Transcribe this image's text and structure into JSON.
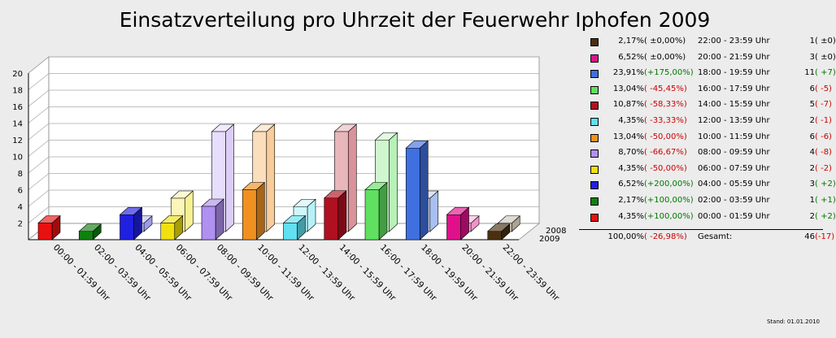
{
  "chart_data": {
    "type": "bar",
    "title": "Einsatzverteilung pro Uhrzeit der Feuerwehr Iphofen 2009",
    "categories": [
      "00:00 - 01:59 Uhr",
      "02:00 - 03:59 Uhr",
      "04:00 - 05:59 Uhr",
      "06:00 - 07:59 Uhr",
      "08:00 - 09:59 Uhr",
      "10:00 - 11:59 Uhr",
      "12:00 - 13:59 Uhr",
      "14:00 - 15:59 Uhr",
      "16:00 - 17:59 Uhr",
      "18:00 - 19:59 Uhr",
      "20:00 - 21:59 Uhr",
      "22:00 - 23:59 Uhr"
    ],
    "series": [
      {
        "name": "2009",
        "values": [
          2,
          1,
          3,
          2,
          4,
          6,
          2,
          5,
          6,
          11,
          3,
          1
        ]
      },
      {
        "name": "2008",
        "values": [
          0,
          0,
          1,
          4,
          12,
          12,
          3,
          12,
          11,
          4,
          1,
          1
        ]
      }
    ],
    "colors": [
      "#e81010",
      "#108010",
      "#2020e0",
      "#f0e010",
      "#b090f0",
      "#f09020",
      "#60e0f0",
      "#b01020",
      "#60e060",
      "#4070e0",
      "#e0108a",
      "#4a3010"
    ],
    "yticks": [
      2,
      4,
      6,
      8,
      10,
      12,
      14,
      16,
      18,
      20
    ],
    "ylim": [
      0,
      20
    ],
    "grid": true
  },
  "legend": {
    "rows": [
      {
        "pct": "2,17%",
        "chg": "( ±0,00%)",
        "chg_color": "none",
        "time": "22:00 - 23:59 Uhr",
        "count": "1",
        "cchg": "( ±0)",
        "cchg_color": "none",
        "color": "#4a3010"
      },
      {
        "pct": "6,52%",
        "chg": "( ±0,00%)",
        "chg_color": "none",
        "time": "20:00 - 21:59 Uhr",
        "count": "3",
        "cchg": "( ±0)",
        "cchg_color": "none",
        "color": "#e0108a"
      },
      {
        "pct": "23,91%",
        "chg": "(+175,00%)",
        "chg_color": "green",
        "time": "18:00 - 19:59 Uhr",
        "count": "11",
        "cchg": "( +7)",
        "cchg_color": "green",
        "color": "#4070e0"
      },
      {
        "pct": "13,04%",
        "chg": "( -45,45%)",
        "chg_color": "red",
        "time": "16:00 - 17:59 Uhr",
        "count": "6",
        "cchg": "( -5)",
        "cchg_color": "red",
        "color": "#60e060"
      },
      {
        "pct": "10,87%",
        "chg": "( -58,33%)",
        "chg_color": "red",
        "time": "14:00 - 15:59 Uhr",
        "count": "5",
        "cchg": "( -7)",
        "cchg_color": "red",
        "color": "#b01020"
      },
      {
        "pct": "4,35%",
        "chg": "( -33,33%)",
        "chg_color": "red",
        "time": "12:00 - 13:59 Uhr",
        "count": "2",
        "cchg": "( -1)",
        "cchg_color": "red",
        "color": "#60e0f0"
      },
      {
        "pct": "13,04%",
        "chg": "( -50,00%)",
        "chg_color": "red",
        "time": "10:00 - 11:59 Uhr",
        "count": "6",
        "cchg": "( -6)",
        "cchg_color": "red",
        "color": "#f09020"
      },
      {
        "pct": "8,70%",
        "chg": "( -66,67%)",
        "chg_color": "red",
        "time": "08:00 - 09:59 Uhr",
        "count": "4",
        "cchg": "( -8)",
        "cchg_color": "red",
        "color": "#b090f0"
      },
      {
        "pct": "4,35%",
        "chg": "( -50,00%)",
        "chg_color": "red",
        "time": "06:00 - 07:59 Uhr",
        "count": "2",
        "cchg": "( -2)",
        "cchg_color": "red",
        "color": "#f0e010"
      },
      {
        "pct": "6,52%",
        "chg": "(+200,00%)",
        "chg_color": "green",
        "time": "04:00 - 05:59 Uhr",
        "count": "3",
        "cchg": "( +2)",
        "cchg_color": "green",
        "color": "#2020e0"
      },
      {
        "pct": "2,17%",
        "chg": "(+100,00%)",
        "chg_color": "green",
        "time": "02:00 - 03:59 Uhr",
        "count": "1",
        "cchg": "( +1)",
        "cchg_color": "green",
        "color": "#108010"
      },
      {
        "pct": "4,35%",
        "chg": "(+100,00%)",
        "chg_color": "green",
        "time": "00:00 - 01:59 Uhr",
        "count": "2",
        "cchg": "( +2)",
        "cchg_color": "green",
        "color": "#e81010"
      }
    ],
    "total": {
      "pct": "100,00%",
      "chg": "( -26,98%)",
      "label": "Gesamt:",
      "count": "46",
      "cchg": "(-17)"
    }
  },
  "footer": {
    "stand": "Stand: 01.01.2010"
  }
}
